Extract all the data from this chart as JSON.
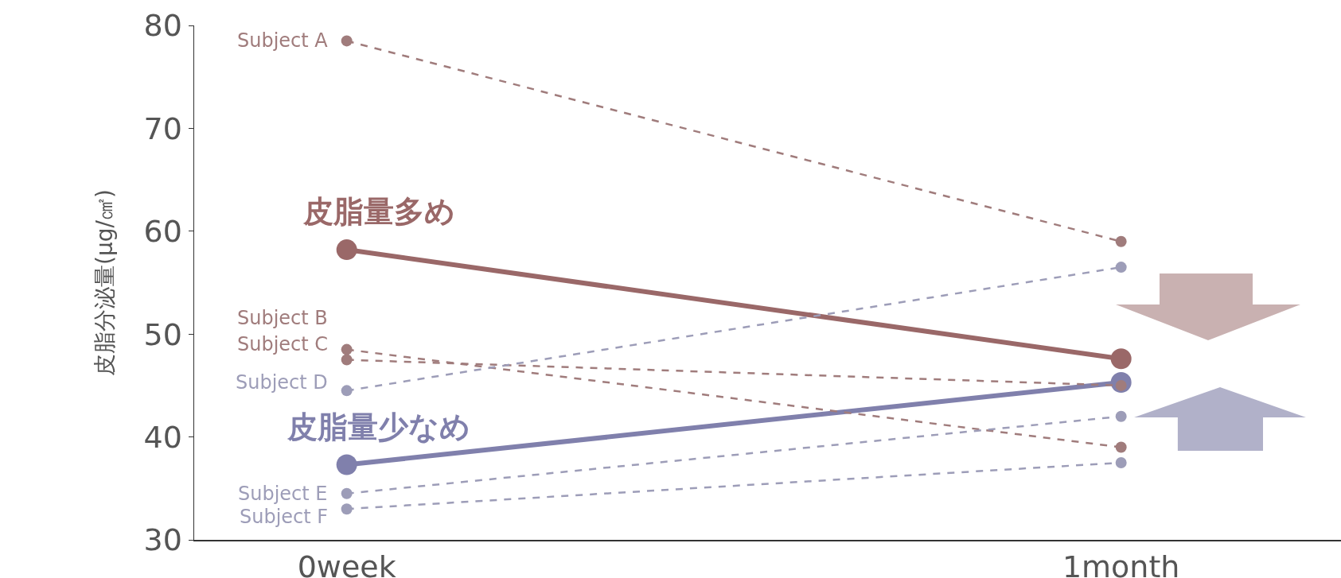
{
  "chart_data": {
    "type": "line",
    "ylabel": "皮脂分泌量(μg/㎠)",
    "categories": [
      "0week",
      "1month"
    ],
    "ylim": [
      30,
      80
    ],
    "yticks": [
      30,
      40,
      50,
      60,
      70,
      80
    ],
    "grid": false,
    "legend": false,
    "marker": "circle",
    "series": [
      {
        "name": "Subject A",
        "color": "#a07c7c",
        "line_style": "dashed",
        "values": [
          78.5,
          59.0
        ]
      },
      {
        "name": "Subject B",
        "color": "#a07c7c",
        "line_style": "dashed",
        "values": [
          48.5,
          39.0
        ]
      },
      {
        "name": "Subject C",
        "color": "#a07c7c",
        "line_style": "dashed",
        "values": [
          47.5,
          45.0
        ]
      },
      {
        "name": "Subject D",
        "color": "#9d9db8",
        "line_style": "dashed",
        "values": [
          44.5,
          56.5
        ]
      },
      {
        "name": "Subject E",
        "color": "#9d9db8",
        "line_style": "dashed",
        "values": [
          34.5,
          42.0
        ]
      },
      {
        "name": "Subject F",
        "color": "#9d9db8",
        "line_style": "dashed",
        "values": [
          33.0,
          37.5
        ]
      },
      {
        "name": "皮脂量多め",
        "color": "#9a6868",
        "line_style": "solid",
        "values": [
          58.2,
          47.6
        ]
      },
      {
        "name": "皮脂量少なめ",
        "color": "#8080ac",
        "line_style": "solid",
        "values": [
          37.3,
          45.3
        ]
      }
    ]
  }
}
